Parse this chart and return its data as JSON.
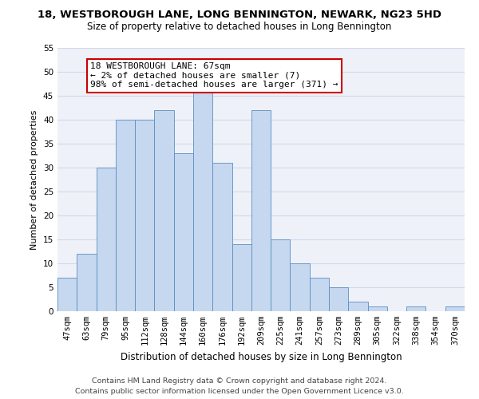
{
  "title": "18, WESTBOROUGH LANE, LONG BENNINGTON, NEWARK, NG23 5HD",
  "subtitle": "Size of property relative to detached houses in Long Bennington",
  "xlabel": "Distribution of detached houses by size in Long Bennington",
  "ylabel": "Number of detached properties",
  "categories": [
    "47sqm",
    "63sqm",
    "79sqm",
    "95sqm",
    "112sqm",
    "128sqm",
    "144sqm",
    "160sqm",
    "176sqm",
    "192sqm",
    "209sqm",
    "225sqm",
    "241sqm",
    "257sqm",
    "273sqm",
    "289sqm",
    "305sqm",
    "322sqm",
    "338sqm",
    "354sqm",
    "370sqm"
  ],
  "values": [
    7,
    12,
    30,
    40,
    40,
    42,
    33,
    46,
    31,
    14,
    42,
    15,
    10,
    7,
    5,
    2,
    1,
    0,
    1,
    0,
    1
  ],
  "bar_color": "#c5d8f0",
  "bar_edge_color": "#5b8dc0",
  "annotation_text": "18 WESTBOROUGH LANE: 67sqm\n← 2% of detached houses are smaller (7)\n98% of semi-detached houses are larger (371) →",
  "annotation_box_color": "#ffffff",
  "annotation_box_edge": "#cc0000",
  "ylim": [
    0,
    55
  ],
  "yticks": [
    0,
    5,
    10,
    15,
    20,
    25,
    30,
    35,
    40,
    45,
    50,
    55
  ],
  "grid_color": "#d0d8e8",
  "bg_color": "#eef2f8",
  "footer_line1": "Contains HM Land Registry data © Crown copyright and database right 2024.",
  "footer_line2": "Contains public sector information licensed under the Open Government Licence v3.0.",
  "title_fontsize": 9.5,
  "subtitle_fontsize": 8.5,
  "xlabel_fontsize": 8.5,
  "ylabel_fontsize": 8.0,
  "tick_fontsize": 7.5,
  "annotation_fontsize": 8.0,
  "footer_fontsize": 6.8
}
